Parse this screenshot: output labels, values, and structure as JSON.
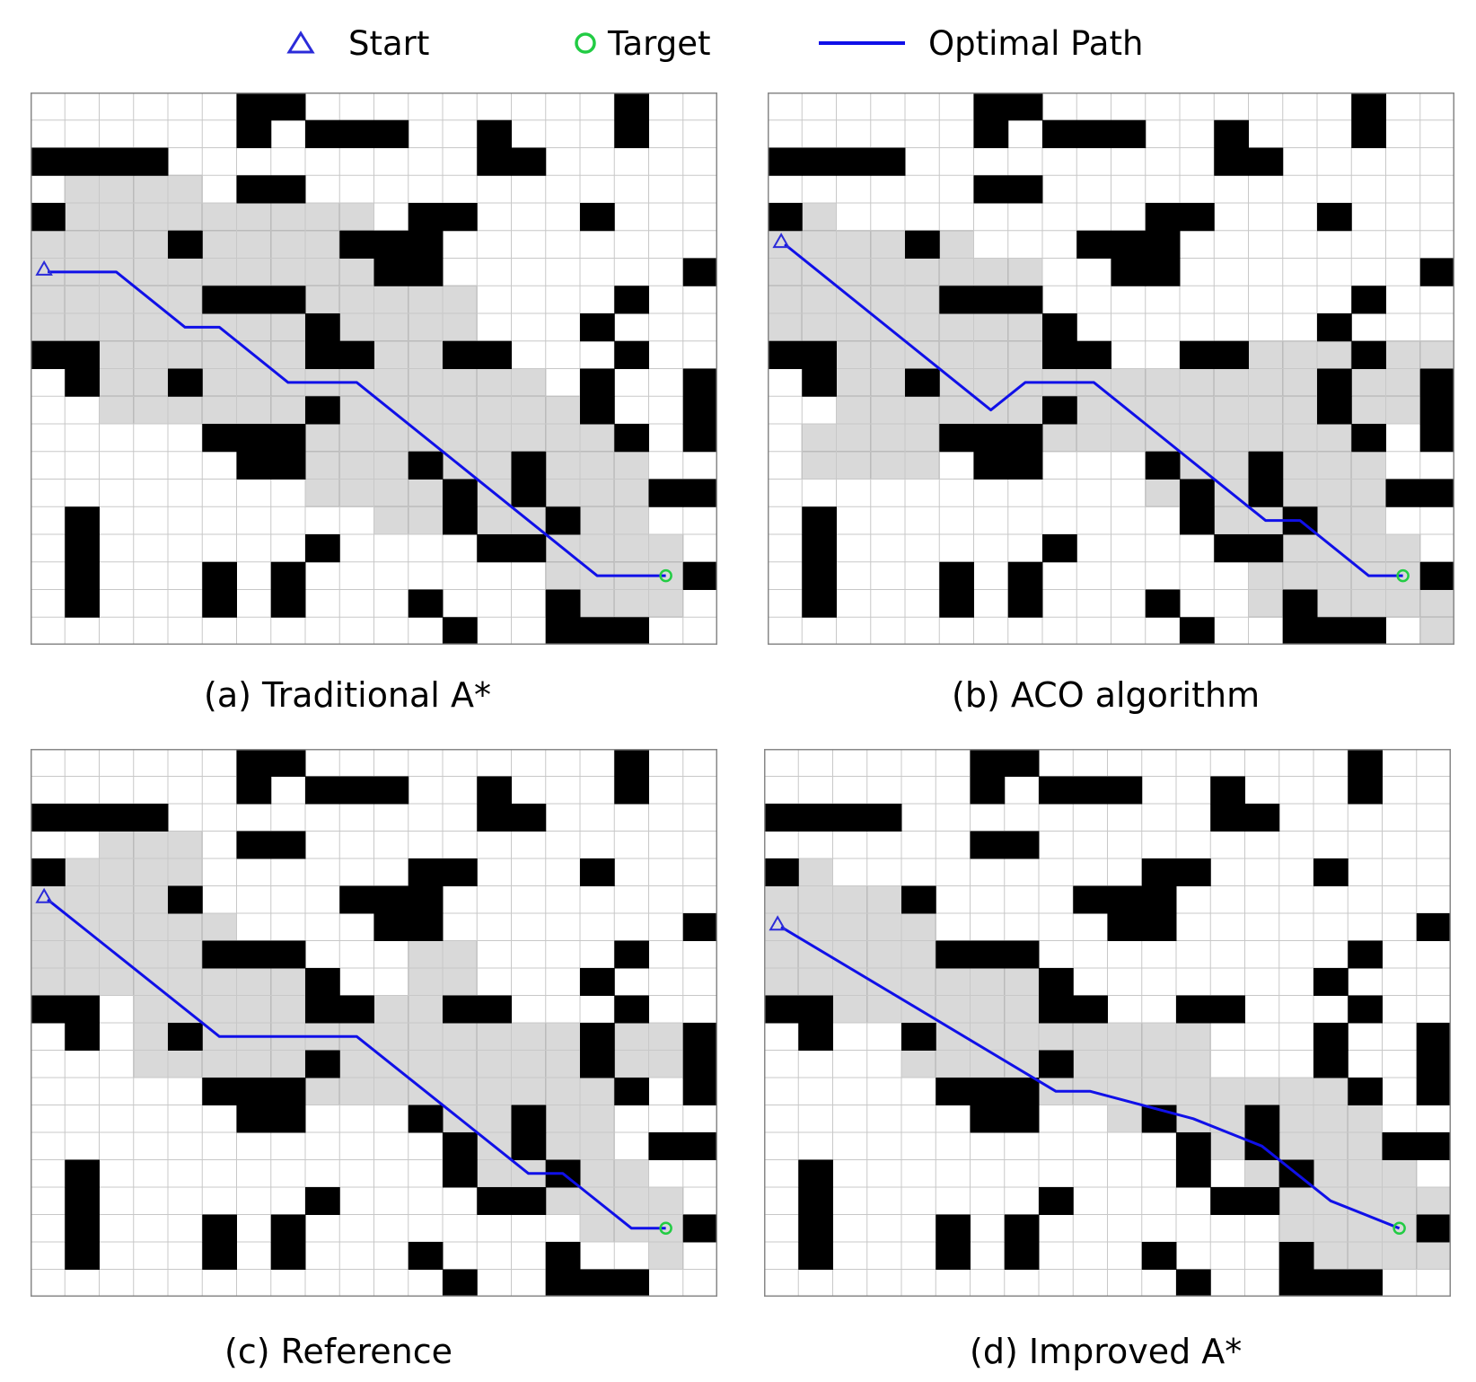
{
  "legend": {
    "start": "Start",
    "target": "Target",
    "path": "Optimal Path",
    "colors": {
      "start": "#2b2bd9",
      "target": "#22cc44",
      "path": "#1010e8",
      "explored": "#d9d9d9",
      "obstacle": "#000000"
    }
  },
  "grid": {
    "cols": 20,
    "rows": 20,
    "obstacle_rows": [
      "......XX.........X..",
      "......X.XXX..X...X..",
      "XXXX.........XX.....",
      "......XX............",
      "X..........XX...X...",
      "....X....XXX........",
      "..........XX.......X",
      ".....XXX.........X..",
      "........X.......X...",
      "XX......XX..XX...X..",
      ".X..X...........X..X",
      "........X.......X..X",
      ".....XXX.........X.X",
      "......XX...X..X.....",
      "............X.X...XX",
      ".X..........X..X....",
      ".X......X....XX.....",
      ".X...X.X...........X",
      ".X...X.X...X...X....",
      "............X..XXX.."
    ],
    "start_cell": [
      0,
      6
    ],
    "target_cell": [
      18,
      17
    ]
  },
  "panels": [
    {
      "caption": "(a)  Traditional A*",
      "explored_rows": [
        "....................",
        "....................",
        "....................",
        ".XXXX...............",
        "XXXXXXXXXX..........",
        "XXXXXXXXXX..........",
        "XXXXXXXXXXXX........",
        "XXXXXXXXXXXXX.......",
        "XXXXXXXXXXXXX.......",
        "XXXXXXXXXXXXXX......",
        "..XXXXXXXXXXXXX.....",
        "..XXXXXXXXXXXXXX....",
        ".......XXXXXXXXXX...",
        ".......XXXXXXXXXXX..",
        "........XXXXXXXXXX..",
        "..........XXXXXXXX..",
        "...............XXXX.",
        "...............XXXX.",
        "...............XXXX.",
        "...................."
      ],
      "path": [
        [
          0.5,
          6.5
        ],
        [
          2.5,
          6.5
        ],
        [
          4.5,
          8.5
        ],
        [
          5.5,
          8.5
        ],
        [
          7.5,
          10.5
        ],
        [
          9.5,
          10.5
        ],
        [
          16.5,
          17.5
        ],
        [
          18.5,
          17.5
        ]
      ]
    },
    {
      "caption": "(b)  ACO algorithm",
      "explored_rows": [
        "....................",
        "....................",
        "....................",
        "....................",
        ".X..................",
        "XXXXXX..............",
        "XXXXXXXX............",
        "XXXXXXXX............",
        "XXXXXXXX............",
        "..XXXXXXX...XXXXXXXX",
        "..XXXXXXXXXXXXXXXXXX",
        "..XXXXXXXXXXXXXXXXX.",
        ".XXXXXXXXXXXXXXXX...",
        ".XXXX......XXXXXXX..",
        "...........XXXXXXX..",
        "............XXXXXX..",
        "..............XXXXX.",
        "..............XXXXX.",
        "..............XXXXXX",
        "...................X"
      ],
      "path": [
        [
          0.5,
          5.5
        ],
        [
          6.5,
          11.5
        ],
        [
          7.5,
          10.5
        ],
        [
          9.5,
          10.5
        ],
        [
          14.5,
          15.5
        ],
        [
          15.5,
          15.5
        ],
        [
          17.5,
          17.5
        ],
        [
          18.5,
          17.5
        ]
      ]
    },
    {
      "caption": "(c)  Reference",
      "explored_rows": [
        "....................",
        "....................",
        "....................",
        "..XXX...............",
        "XXXXX...............",
        "XXXXX...............",
        "XXXXXX..............",
        "XXXXXXX....XX.......",
        "XXXXXXXXX..XX.......",
        "...XXXXXXXXXXX......",
        "...XXXXXXXXXXXXXXXX.",
        "...XXXXXXXXXXXXXXXX.",
        "......XXXXXXXXXXX...",
        "...........XXXXXX...",
        "............XXXXX...",
        "............XXXXXX..",
        "..............XXXXX.",
        "................XXX.",
        "..................X.",
        "...................."
      ],
      "path": [
        [
          0.5,
          5.5
        ],
        [
          5.5,
          10.5
        ],
        [
          9.5,
          10.5
        ],
        [
          14.5,
          15.5
        ],
        [
          15.5,
          15.5
        ],
        [
          17.5,
          17.5
        ],
        [
          18.5,
          17.5
        ]
      ]
    },
    {
      "caption": "(d)  Improved A*",
      "explored_rows": [
        "....................",
        "....................",
        "....................",
        "....................",
        "XX..................",
        "XXXX................",
        "XXXXX...............",
        "XXXXXX..............",
        "XXXXXXXX............",
        "XXXXXXXXX...........",
        "....XXXXXXXXX.......",
        "....XXXXXXXXX.......",
        "......XXXXXXXXXXX...",
        "..........XXXXXXXX..",
        "............XXXXXXX.",
        "..............XXXXX.",
        "...............XXXXX",
        "...............XXXXX",
        "................XXXX",
        "...................."
      ],
      "path": [
        [
          0.5,
          6.5
        ],
        [
          8.5,
          12.5
        ],
        [
          9.5,
          12.5
        ],
        [
          12.5,
          13.5
        ],
        [
          14.5,
          14.5
        ],
        [
          16.5,
          16.5
        ],
        [
          18.5,
          17.5
        ]
      ]
    }
  ]
}
